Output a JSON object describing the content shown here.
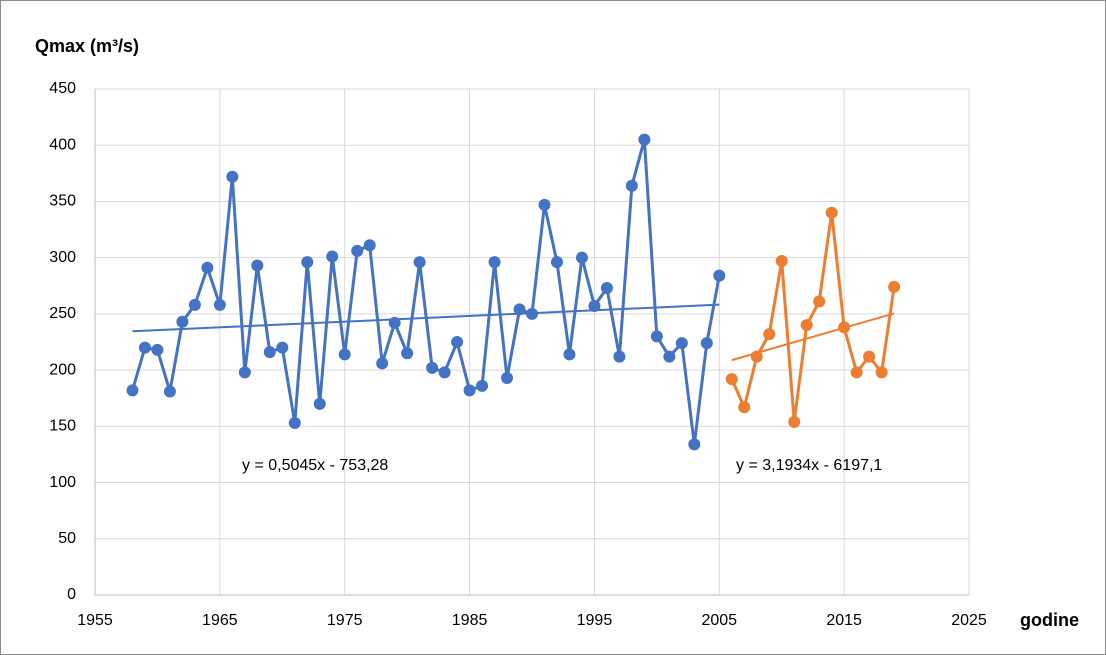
{
  "chart_data": {
    "type": "line",
    "title": "Qmax (m³/s)",
    "x_label": "godine",
    "xlim": [
      1955,
      2025
    ],
    "xticks": [
      1955,
      1965,
      1975,
      1985,
      1995,
      2005,
      2015,
      2025
    ],
    "ylim": [
      0,
      450
    ],
    "yticks": [
      0,
      50,
      100,
      150,
      200,
      250,
      300,
      350,
      400,
      450
    ],
    "grid": true,
    "series": [
      {
        "color": "#4472c4",
        "x": [
          1958,
          1959,
          1960,
          1961,
          1962,
          1963,
          1964,
          1965,
          1966,
          1967,
          1968,
          1969,
          1970,
          1971,
          1972,
          1973,
          1974,
          1975,
          1976,
          1977,
          1978,
          1979,
          1980,
          1981,
          1982,
          1983,
          1984,
          1985,
          1986,
          1987,
          1988,
          1989,
          1990,
          1991,
          1992,
          1993,
          1994,
          1995,
          1996,
          1997,
          1998,
          1999,
          2000,
          2001,
          2002,
          2003,
          2004,
          2005
        ],
        "values": [
          182,
          220,
          218,
          181,
          243,
          258,
          291,
          258,
          372,
          198,
          293,
          216,
          220,
          153,
          296,
          170,
          301,
          214,
          306,
          311,
          206,
          242,
          215,
          296,
          202,
          198,
          225,
          182,
          186,
          296,
          193,
          254,
          250,
          347,
          296,
          214,
          300,
          257,
          273,
          212,
          364,
          405,
          230,
          212,
          224,
          134,
          224,
          284
        ]
      },
      {
        "color": "#ed7d31",
        "x": [
          2006,
          2007,
          2008,
          2009,
          2010,
          2011,
          2012,
          2013,
          2014,
          2015,
          2016,
          2017,
          2018,
          2019
        ],
        "values": [
          192,
          167,
          212,
          232,
          297,
          154,
          240,
          261,
          340,
          238,
          198,
          212,
          198,
          274
        ]
      }
    ],
    "trendlines": [
      {
        "label": "y = 0,5045x - 753,28",
        "slope": 0.5045,
        "intercept": -753.28,
        "x": [
          1958,
          2005
        ],
        "color": "#4472c4"
      },
      {
        "label": "y = 3,1934x - 6197,1",
        "slope": 3.1934,
        "intercept": -6197.1,
        "x": [
          2006,
          2019
        ],
        "color": "#ed7d31"
      }
    ]
  }
}
